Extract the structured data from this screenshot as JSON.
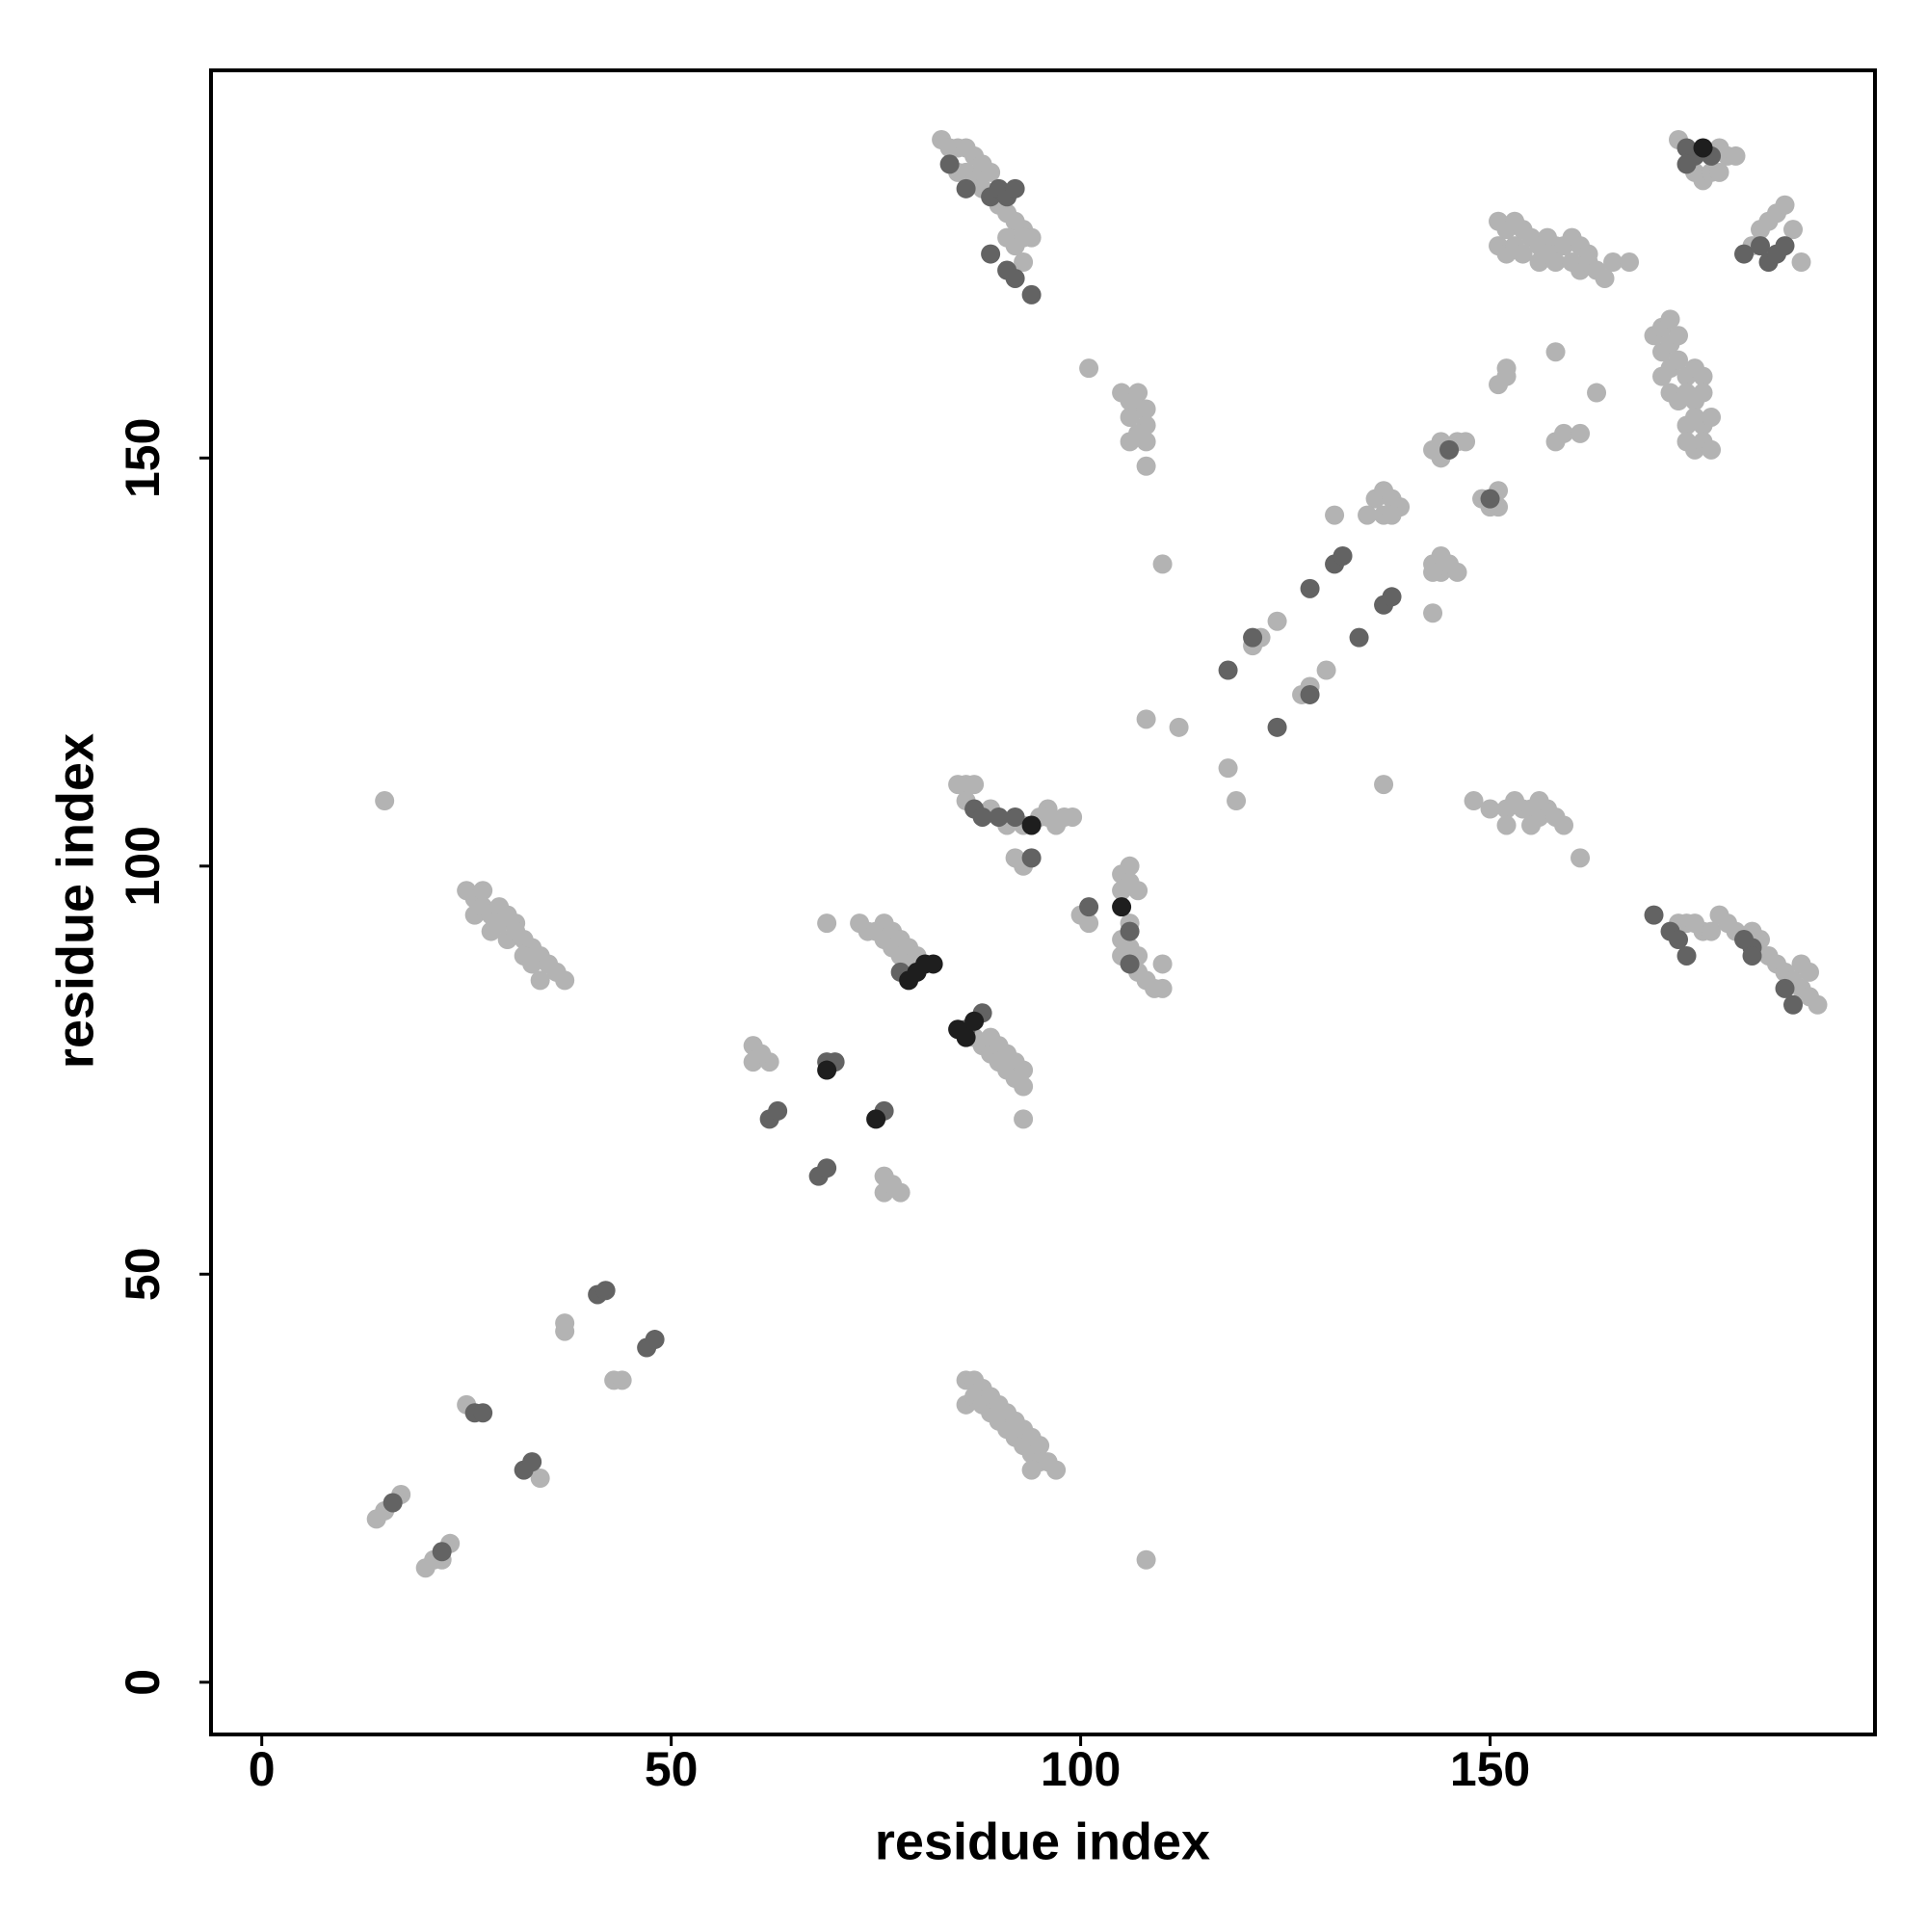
{
  "chart_data": {
    "type": "scatter",
    "xlabel": "residue index",
    "ylabel": "residue index",
    "xlim": [
      -6.2,
      197
    ],
    "ylim": [
      -6.4,
      197.5
    ],
    "xticks": [
      0,
      50,
      100,
      150
    ],
    "yticks": [
      0,
      50,
      100,
      150
    ],
    "grid": false,
    "series": [
      {
        "color": "#b3b3b3",
        "x": [
          14,
          15,
          17,
          20,
          21,
          23,
          22,
          25,
          34,
          37,
          37,
          43,
          44,
          86,
          87,
          88,
          86,
          87,
          88,
          89,
          89,
          90,
          90,
          91,
          91,
          92,
          92,
          93,
          93,
          94,
          94,
          95,
          95,
          96,
          97,
          94,
          108,
          60,
          60,
          62,
          61,
          76,
          76,
          78,
          77,
          69,
          73,
          74,
          75,
          76,
          76,
          77,
          77,
          78,
          78,
          79,
          79,
          80,
          87,
          88,
          89,
          89,
          90,
          90,
          91,
          91,
          92,
          92,
          93,
          93,
          93,
          85,
          86,
          87,
          86,
          89,
          91,
          93,
          95,
          96,
          97,
          98,
          99,
          96,
          92,
          93,
          100,
          101,
          105,
          106,
          105,
          106,
          107,
          105,
          106,
          107,
          105,
          107,
          108,
          109,
          110,
          110,
          106,
          108,
          112,
          101,
          105,
          106,
          107,
          106,
          107,
          108,
          108,
          107,
          106,
          108,
          108,
          110,
          83,
          84,
          85,
          86,
          87,
          88,
          85,
          86,
          87,
          88,
          89,
          88,
          90,
          91,
          92,
          93,
          94,
          91,
          92,
          93,
          93,
          118,
          119,
          121,
          122,
          124,
          127,
          128,
          130,
          131,
          137,
          137,
          136,
          137,
          138,
          139,
          138,
          135,
          143,
          143,
          144,
          144,
          145,
          146,
          143,
          143,
          144,
          144,
          146,
          147,
          148,
          149,
          150,
          151,
          151,
          151,
          152,
          152,
          150,
          152,
          153,
          154,
          155,
          156,
          157,
          158,
          159,
          155,
          152,
          156,
          158,
          158,
          159,
          161,
          161,
          163,
          151,
          152,
          153,
          154,
          151,
          152,
          153,
          154,
          155,
          156,
          157,
          158,
          156,
          157,
          158,
          159,
          160,
          161,
          162,
          160,
          161,
          162,
          163,
          164,
          165,
          167,
          170,
          171,
          172,
          171,
          172,
          173,
          171,
          172,
          173,
          174,
          175,
          176,
          172,
          173,
          174,
          175,
          176,
          174,
          175,
          176,
          177,
          174,
          175,
          176,
          177,
          173,
          178,
          179,
          180,
          175,
          176,
          177,
          178,
          182,
          184,
          185,
          186,
          187,
          188,
          183,
          173,
          174,
          175,
          176,
          177,
          178,
          179,
          180,
          182,
          183,
          184,
          185,
          186,
          187,
          188,
          189,
          190,
          188,
          189,
          25,
          26,
          27,
          26,
          27,
          28,
          29,
          28,
          29,
          30,
          31,
          30,
          31,
          32,
          33,
          32,
          33,
          34,
          35,
          34,
          36,
          37,
          15
        ],
        "y": [
          20,
          21,
          23,
          14,
          15,
          17,
          15,
          34,
          25,
          44,
          43,
          37,
          37,
          37,
          37,
          36,
          34,
          35,
          34,
          33,
          35,
          34,
          32,
          33,
          31,
          32,
          30,
          31,
          29,
          30,
          28,
          29,
          27,
          27,
          26,
          26,
          15,
          78,
          76,
          76,
          77,
          62,
          60,
          60,
          61,
          93,
          93,
          92,
          92,
          93,
          91,
          92,
          90,
          91,
          89,
          90,
          88,
          89,
          79,
          78,
          79,
          77,
          78,
          76,
          77,
          75,
          76,
          74,
          75,
          73,
          69,
          110,
          110,
          110,
          108,
          107,
          105,
          105,
          106,
          107,
          105,
          106,
          106,
          106,
          101,
          100,
          94,
          93,
          99,
          100,
          97,
          98,
          97,
          91,
          90,
          89,
          89,
          87,
          86,
          85,
          88,
          85,
          93,
          118,
          117,
          161,
          158,
          157,
          158,
          155,
          156,
          156,
          154,
          153,
          152,
          152,
          149,
          137,
          189,
          188,
          188,
          188,
          187,
          186,
          185,
          185,
          184,
          185,
          185,
          183,
          181,
          180,
          179,
          178,
          177,
          177,
          176,
          177,
          174,
          112,
          108,
          127,
          128,
          130,
          121,
          122,
          124,
          143,
          110,
          143,
          145,
          146,
          145,
          144,
          143,
          143,
          131,
          137,
          138,
          136,
          137,
          136,
          136,
          151,
          150,
          152,
          152,
          152,
          108,
          145,
          144,
          146,
          144,
          159,
          160,
          161,
          107,
          107,
          108,
          107,
          107,
          106,
          107,
          106,
          105,
          105,
          105,
          108,
          163,
          152,
          153,
          153,
          101,
          158,
          179,
          178,
          179,
          178,
          176,
          175,
          176,
          175,
          177,
          176,
          177,
          176,
          174,
          175,
          174,
          176,
          177,
          176,
          175,
          174,
          173,
          174,
          173,
          172,
          174,
          174,
          165,
          166,
          167,
          163,
          164,
          165,
          160,
          161,
          162,
          160,
          161,
          160,
          158,
          157,
          158,
          157,
          158,
          154,
          155,
          154,
          155,
          152,
          151,
          152,
          151,
          189,
          188,
          187,
          187,
          185,
          184,
          185,
          185,
          176,
          179,
          180,
          181,
          178,
          174,
          178,
          93,
          93,
          93,
          92,
          92,
          94,
          93,
          92,
          92,
          91,
          89,
          88,
          87,
          86,
          85,
          84,
          83,
          88,
          87,
          97,
          96,
          97,
          94,
          95,
          94,
          95,
          92,
          93,
          94,
          93,
          91,
          92,
          91,
          90,
          89,
          88,
          89,
          88,
          86,
          87,
          86,
          108
        ]
      },
      {
        "color": "#636363",
        "x": [
          16,
          22,
          26,
          27,
          32,
          33,
          41,
          42,
          47,
          48,
          62,
          63,
          68,
          69,
          70,
          69,
          76,
          78,
          88,
          86,
          87,
          88,
          90,
          92,
          94,
          101,
          106,
          106,
          84,
          86,
          89,
          90,
          91,
          92,
          89,
          91,
          92,
          94,
          118,
          121,
          124,
          128,
          128,
          131,
          132,
          134,
          137,
          138,
          145,
          150,
          174,
          175,
          177,
          174,
          181,
          183,
          184,
          185,
          186,
          170,
          172,
          173,
          174,
          181,
          182,
          187,
          186,
          182
        ],
        "y": [
          22,
          16,
          33,
          33,
          26,
          27,
          47.5,
          48,
          41,
          42,
          69,
          70,
          62,
          63,
          76,
          76,
          70,
          87,
          82,
          80,
          107,
          106,
          106,
          106,
          101,
          95,
          92,
          88,
          186,
          183,
          182,
          183,
          182,
          183,
          175,
          173,
          172,
          170,
          124,
          128,
          117,
          121,
          134,
          137,
          138,
          128,
          132,
          133,
          151,
          145,
          188,
          187,
          187,
          186,
          175,
          176,
          174,
          175,
          176,
          94,
          92,
          91,
          89,
          91,
          90,
          83,
          85,
          89
        ]
      },
      {
        "color": "#1e1e1e",
        "x": [
          69,
          75,
          81,
          82,
          80,
          79,
          85,
          86,
          87,
          94,
          105,
          176
        ],
        "y": [
          75,
          69,
          88,
          88,
          87,
          86,
          80,
          79,
          81,
          105,
          95,
          188
        ]
      }
    ]
  }
}
